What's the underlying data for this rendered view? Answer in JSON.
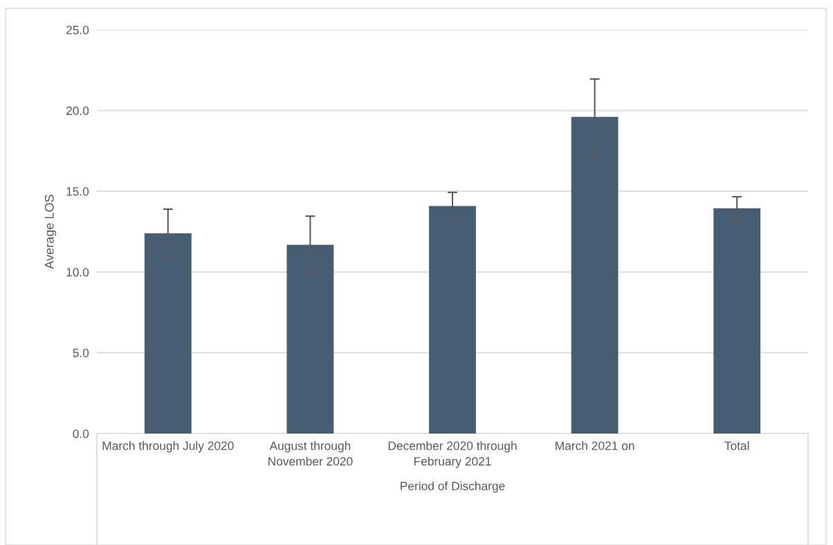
{
  "chart_data": {
    "type": "bar",
    "categories": [
      "March through July 2020",
      "August through November 2020",
      "December 2020 through February 2021",
      "March 2021 on",
      "Total"
    ],
    "values": [
      12.39,
      11.69,
      14.09,
      19.61,
      13.95
    ],
    "errors": [
      1.5,
      1.77,
      0.84,
      2.34,
      0.71
    ],
    "color": "#475e72",
    "xlabel": "Period of Discharge",
    "ylabel": "Average LOS",
    "ylim": [
      0,
      25
    ],
    "yticks": [
      {
        "value": 0,
        "label": "0.0"
      },
      {
        "value": 5,
        "label": "5.0"
      },
      {
        "value": 10,
        "label": "10.0"
      },
      {
        "value": 15,
        "label": "15.0"
      },
      {
        "value": 20,
        "label": "20.0"
      },
      {
        "value": 25,
        "label": "25.0"
      }
    ],
    "grid": "y"
  }
}
